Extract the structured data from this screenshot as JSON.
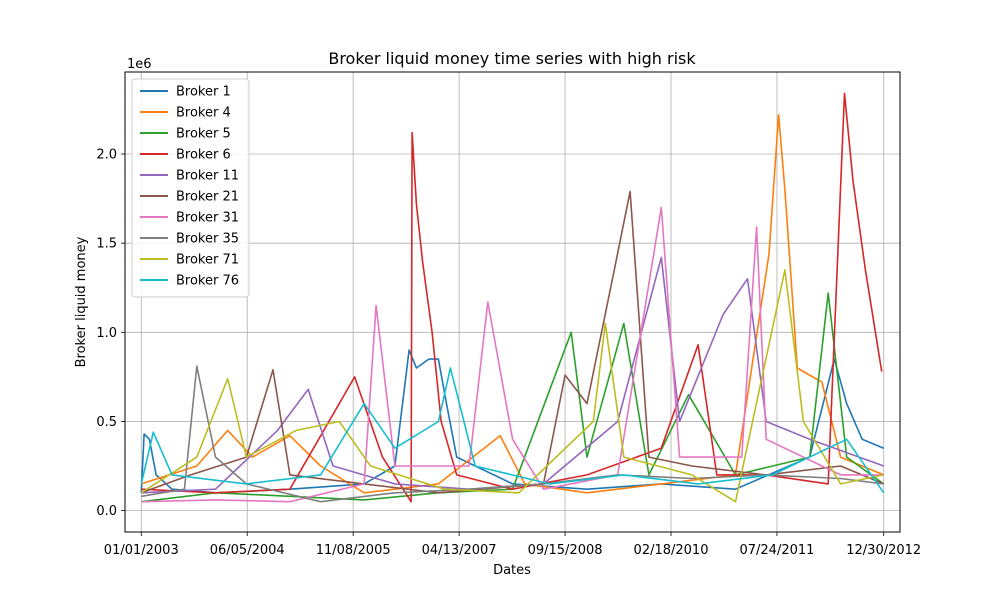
{
  "chart_data": {
    "type": "line",
    "title": "Broker liquid money time series with high risk",
    "xlabel": "Dates",
    "ylabel": "Broker liquid money",
    "y_offset_label": "1e6",
    "x_range": [
      "2002-10-13",
      "2013-03-20"
    ],
    "ylim": [
      -0.12,
      2.46
    ],
    "y_ticks": [
      0.0,
      0.5,
      1.0,
      1.5,
      2.0
    ],
    "y_tick_labels": [
      "0.0",
      "0.5",
      "1.0",
      "1.5",
      "2.0"
    ],
    "x_ticks": [
      "2003-01-01",
      "2004-06-05",
      "2005-11-08",
      "2007-04-13",
      "2008-09-15",
      "2010-02-18",
      "2011-07-24",
      "2012-12-30"
    ],
    "x_tick_labels": [
      "01/01/2003",
      "06/05/2004",
      "11/08/2005",
      "04/13/2007",
      "09/15/2008",
      "02/18/2010",
      "07/24/2011",
      "12/30/2012"
    ],
    "grid": true,
    "legend_position": "upper-left",
    "series": [
      {
        "name": "Broker 1",
        "color": "#1f77b4",
        "points": [
          [
            "2003-01-01",
            0.1
          ],
          [
            "2003-01-15",
            0.43
          ],
          [
            "2003-02-10",
            0.4
          ],
          [
            "2003-03-15",
            0.2
          ],
          [
            "2003-06-01",
            0.12
          ],
          [
            "2004-01-01",
            0.1
          ],
          [
            "2005-01-01",
            0.12
          ],
          [
            "2006-01-01",
            0.15
          ],
          [
            "2006-06-01",
            0.25
          ],
          [
            "2006-08-10",
            0.9
          ],
          [
            "2006-09-15",
            0.8
          ],
          [
            "2006-11-15",
            0.85
          ],
          [
            "2007-01-01",
            0.85
          ],
          [
            "2007-02-10",
            0.6
          ],
          [
            "2007-04-01",
            0.3
          ],
          [
            "2008-01-01",
            0.15
          ],
          [
            "2009-01-01",
            0.12
          ],
          [
            "2010-01-01",
            0.15
          ],
          [
            "2011-01-01",
            0.12
          ],
          [
            "2012-01-01",
            0.3
          ],
          [
            "2012-05-01",
            0.85
          ],
          [
            "2012-07-01",
            0.6
          ],
          [
            "2012-09-15",
            0.4
          ],
          [
            "2012-12-30",
            0.35
          ]
        ]
      },
      {
        "name": "Broker 4",
        "color": "#ff7f0e",
        "points": [
          [
            "2003-01-01",
            0.15
          ],
          [
            "2003-10-01",
            0.25
          ],
          [
            "2004-03-01",
            0.45
          ],
          [
            "2004-07-01",
            0.3
          ],
          [
            "2005-01-01",
            0.42
          ],
          [
            "2005-06-01",
            0.25
          ],
          [
            "2006-01-01",
            0.1
          ],
          [
            "2007-01-01",
            0.15
          ],
          [
            "2007-11-01",
            0.42
          ],
          [
            "2008-03-01",
            0.15
          ],
          [
            "2009-01-01",
            0.1
          ],
          [
            "2010-01-01",
            0.15
          ],
          [
            "2011-01-01",
            0.2
          ],
          [
            "2011-06-15",
            1.44
          ],
          [
            "2011-08-01",
            2.22
          ],
          [
            "2011-09-01",
            1.8
          ],
          [
            "2011-11-01",
            0.8
          ],
          [
            "2012-03-01",
            0.72
          ],
          [
            "2012-06-01",
            0.3
          ],
          [
            "2012-12-30",
            0.2
          ]
        ]
      },
      {
        "name": "Broker 5",
        "color": "#2ca02c",
        "points": [
          [
            "2003-01-01",
            0.05
          ],
          [
            "2004-01-01",
            0.1
          ],
          [
            "2005-01-01",
            0.08
          ],
          [
            "2006-01-01",
            0.06
          ],
          [
            "2007-01-01",
            0.1
          ],
          [
            "2008-01-01",
            0.12
          ],
          [
            "2008-10-15",
            1.0
          ],
          [
            "2009-01-01",
            0.3
          ],
          [
            "2009-07-01",
            1.05
          ],
          [
            "2009-11-01",
            0.2
          ],
          [
            "2010-05-15",
            0.65
          ],
          [
            "2011-01-01",
            0.2
          ],
          [
            "2012-01-01",
            0.3
          ],
          [
            "2012-04-01",
            1.22
          ],
          [
            "2012-07-01",
            0.3
          ],
          [
            "2012-12-30",
            0.15
          ]
        ]
      },
      {
        "name": "Broker 6",
        "color": "#d62728",
        "points": [
          [
            "2003-01-01",
            0.12
          ],
          [
            "2004-01-01",
            0.1
          ],
          [
            "2005-01-01",
            0.12
          ],
          [
            "2005-11-15",
            0.75
          ],
          [
            "2006-04-01",
            0.3
          ],
          [
            "2006-08-20",
            0.05
          ],
          [
            "2006-08-25",
            2.12
          ],
          [
            "2006-09-15",
            1.72
          ],
          [
            "2006-10-15",
            1.4
          ],
          [
            "2006-12-01",
            1.0
          ],
          [
            "2007-01-15",
            0.5
          ],
          [
            "2007-04-01",
            0.2
          ],
          [
            "2008-01-01",
            0.12
          ],
          [
            "2009-01-01",
            0.2
          ],
          [
            "2010-01-01",
            0.35
          ],
          [
            "2010-07-01",
            0.93
          ],
          [
            "2010-10-01",
            0.2
          ],
          [
            "2011-06-01",
            0.2
          ],
          [
            "2012-04-01",
            0.15
          ],
          [
            "2012-06-20",
            2.34
          ],
          [
            "2012-08-01",
            1.85
          ],
          [
            "2012-10-01",
            1.35
          ],
          [
            "2012-12-20",
            0.78
          ]
        ]
      },
      {
        "name": "Broker 11",
        "color": "#9467bd",
        "points": [
          [
            "2003-01-01",
            0.1
          ],
          [
            "2004-01-01",
            0.12
          ],
          [
            "2004-11-01",
            0.45
          ],
          [
            "2005-04-01",
            0.68
          ],
          [
            "2005-08-01",
            0.25
          ],
          [
            "2006-06-01",
            0.15
          ],
          [
            "2007-06-01",
            0.12
          ],
          [
            "2008-06-01",
            0.15
          ],
          [
            "2009-06-01",
            0.5
          ],
          [
            "2010-01-01",
            1.42
          ],
          [
            "2010-04-01",
            0.5
          ],
          [
            "2010-11-01",
            1.1
          ],
          [
            "2011-03-01",
            1.3
          ],
          [
            "2011-06-01",
            0.5
          ],
          [
            "2012-01-01",
            0.4
          ],
          [
            "2012-12-30",
            0.25
          ]
        ]
      },
      {
        "name": "Broker 21",
        "color": "#8c564b",
        "points": [
          [
            "2003-01-01",
            0.1
          ],
          [
            "2003-09-01",
            0.2
          ],
          [
            "2004-06-01",
            0.3
          ],
          [
            "2004-10-10",
            0.79
          ],
          [
            "2005-01-01",
            0.2
          ],
          [
            "2006-01-01",
            0.15
          ],
          [
            "2007-01-01",
            0.1
          ],
          [
            "2008-06-01",
            0.15
          ],
          [
            "2008-09-15",
            0.76
          ],
          [
            "2009-01-01",
            0.6
          ],
          [
            "2009-05-15",
            1.35
          ],
          [
            "2009-08-01",
            1.79
          ],
          [
            "2009-11-01",
            0.3
          ],
          [
            "2010-06-01",
            0.25
          ],
          [
            "2011-06-01",
            0.2
          ],
          [
            "2012-06-01",
            0.25
          ],
          [
            "2012-12-30",
            0.15
          ]
        ]
      },
      {
        "name": "Broker 31",
        "color": "#e377c2",
        "points": [
          [
            "2003-01-01",
            0.05
          ],
          [
            "2004-01-01",
            0.06
          ],
          [
            "2005-01-01",
            0.05
          ],
          [
            "2006-01-01",
            0.15
          ],
          [
            "2006-03-01",
            1.15
          ],
          [
            "2006-06-01",
            0.25
          ],
          [
            "2007-06-01",
            0.25
          ],
          [
            "2007-09-01",
            1.17
          ],
          [
            "2008-01-01",
            0.4
          ],
          [
            "2008-06-01",
            0.12
          ],
          [
            "2009-06-01",
            0.2
          ],
          [
            "2010-01-01",
            1.7
          ],
          [
            "2010-04-01",
            0.3
          ],
          [
            "2011-02-01",
            0.3
          ],
          [
            "2011-04-15",
            1.59
          ],
          [
            "2011-06-01",
            0.4
          ],
          [
            "2012-06-01",
            0.2
          ],
          [
            "2012-12-30",
            0.2
          ]
        ]
      },
      {
        "name": "Broker 35",
        "color": "#7f7f7f",
        "points": [
          [
            "2003-01-01",
            0.08
          ],
          [
            "2003-08-01",
            0.12
          ],
          [
            "2003-10-01",
            0.81
          ],
          [
            "2004-01-01",
            0.3
          ],
          [
            "2004-06-01",
            0.15
          ],
          [
            "2005-06-01",
            0.05
          ],
          [
            "2006-06-01",
            0.1
          ],
          [
            "2007-06-01",
            0.12
          ],
          [
            "2008-06-01",
            0.15
          ],
          [
            "2009-06-01",
            0.2
          ],
          [
            "2010-06-01",
            0.18
          ],
          [
            "2011-06-01",
            0.2
          ],
          [
            "2012-06-01",
            0.18
          ],
          [
            "2012-12-30",
            0.15
          ]
        ]
      },
      {
        "name": "Broker 71",
        "color": "#bcbd22",
        "points": [
          [
            "2003-01-01",
            0.1
          ],
          [
            "2003-10-01",
            0.3
          ],
          [
            "2004-03-01",
            0.74
          ],
          [
            "2004-06-01",
            0.3
          ],
          [
            "2005-02-01",
            0.45
          ],
          [
            "2005-09-01",
            0.5
          ],
          [
            "2006-02-01",
            0.25
          ],
          [
            "2007-02-01",
            0.12
          ],
          [
            "2008-02-01",
            0.1
          ],
          [
            "2009-02-01",
            0.5
          ],
          [
            "2009-04-01",
            1.05
          ],
          [
            "2009-07-01",
            0.3
          ],
          [
            "2010-06-01",
            0.2
          ],
          [
            "2011-01-01",
            0.05
          ],
          [
            "2011-09-01",
            1.35
          ],
          [
            "2011-12-01",
            0.5
          ],
          [
            "2012-06-01",
            0.15
          ],
          [
            "2012-12-30",
            0.2
          ]
        ]
      },
      {
        "name": "Broker 76",
        "color": "#17becf",
        "points": [
          [
            "2003-01-01",
            0.15
          ],
          [
            "2003-03-01",
            0.44
          ],
          [
            "2003-06-01",
            0.2
          ],
          [
            "2004-06-01",
            0.15
          ],
          [
            "2005-06-01",
            0.2
          ],
          [
            "2006-01-01",
            0.6
          ],
          [
            "2006-06-01",
            0.35
          ],
          [
            "2007-01-01",
            0.5
          ],
          [
            "2007-03-01",
            0.8
          ],
          [
            "2007-07-01",
            0.25
          ],
          [
            "2008-07-01",
            0.15
          ],
          [
            "2009-07-01",
            0.2
          ],
          [
            "2010-07-01",
            0.15
          ],
          [
            "2011-07-01",
            0.2
          ],
          [
            "2012-07-01",
            0.4
          ],
          [
            "2012-12-30",
            0.1
          ]
        ]
      }
    ]
  }
}
